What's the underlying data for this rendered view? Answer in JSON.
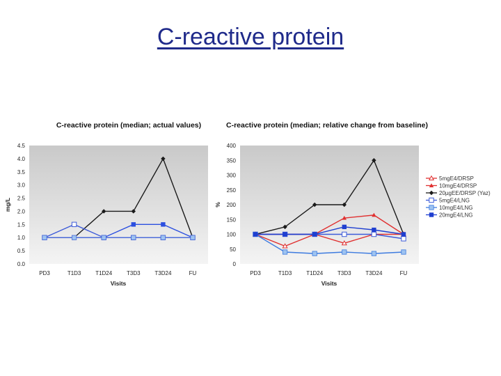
{
  "slide": {
    "title": "C-reactive protein"
  },
  "chart_data": [
    {
      "type": "line",
      "title": "C-reactive protein (median; actual values)",
      "xlabel": "Visits",
      "ylabel": "mg/L",
      "categories": [
        "PD3",
        "T1D3",
        "T1D24",
        "T3D3",
        "T3D24",
        "FU"
      ],
      "yticks": [
        "0.0",
        "0.5",
        "1.0",
        "1.5",
        "2.0",
        "2.5",
        "3.0",
        "3.5",
        "4.0",
        "4.5"
      ],
      "ylim": [
        0,
        4.5
      ],
      "grid": false,
      "series": [
        {
          "color": "#1a1a1a",
          "marker": "diamond",
          "values": [
            1.0,
            1.0,
            2.0,
            2.0,
            4.0,
            1.0
          ]
        },
        {
          "color": "#3d5bd9",
          "marker": "open-square",
          "values": [
            1.0,
            1.5,
            1.0,
            1.0,
            1.0,
            1.0
          ]
        },
        {
          "color": "#2b4fe0",
          "marker": "square",
          "values": [
            1.0,
            1.0,
            1.0,
            1.5,
            1.5,
            1.0
          ]
        },
        {
          "color": "#4b6bd9",
          "marker": "light-square",
          "values": [
            1.0,
            1.0,
            1.0,
            1.0,
            1.0,
            1.0
          ]
        }
      ]
    },
    {
      "type": "line",
      "title": "C-reactive protein (median; relative change from baseline)",
      "xlabel": "Visits",
      "ylabel": "%",
      "categories": [
        "PD3",
        "T1D3",
        "T1D24",
        "T3D3",
        "T3D24",
        "FU"
      ],
      "yticks": [
        "0",
        "50",
        "100",
        "150",
        "200",
        "250",
        "300",
        "350",
        "400"
      ],
      "ylim": [
        0,
        400
      ],
      "grid": false,
      "legend": "right",
      "series": [
        {
          "name": "5mgE4/DRSP",
          "color": "#e03030",
          "marker": "open-triangle",
          "values": [
            100,
            60,
            100,
            70,
            100,
            100
          ]
        },
        {
          "name": "10mgE4/DRSP",
          "color": "#e03030",
          "marker": "triangle",
          "values": [
            100,
            100,
            100,
            155,
            165,
            100
          ]
        },
        {
          "name": "20µgEE/DRSP (Yaz)",
          "color": "#1a1a1a",
          "marker": "diamond",
          "values": [
            100,
            125,
            200,
            200,
            350,
            100
          ]
        },
        {
          "name": "5mgE4/LNG",
          "color": "#3d5bd9",
          "marker": "open-square",
          "values": [
            100,
            100,
            100,
            100,
            100,
            85
          ]
        },
        {
          "name": "10mgE4/LNG",
          "color": "#3d7be0",
          "marker": "light-square",
          "values": [
            100,
            40,
            35,
            40,
            35,
            40
          ]
        },
        {
          "name": "20mgE4/LNG",
          "color": "#1f3fd0",
          "marker": "square",
          "values": [
            100,
            100,
            100,
            125,
            115,
            100
          ]
        }
      ]
    }
  ]
}
